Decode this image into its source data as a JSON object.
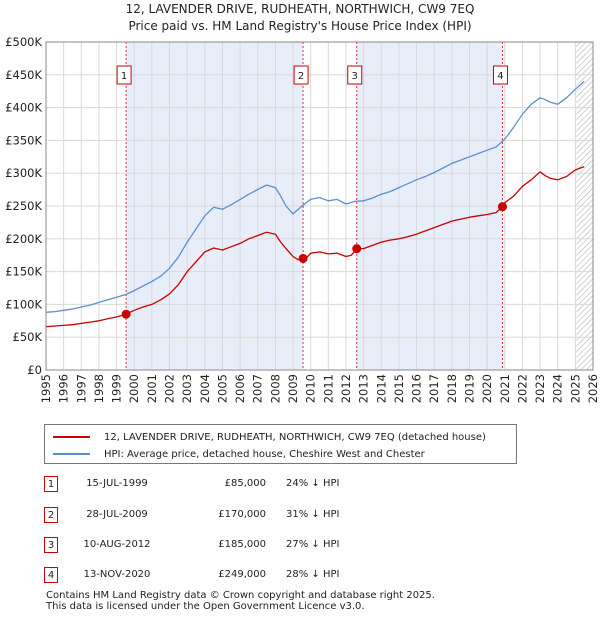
{
  "title_line1": "12, LAVENDER DRIVE, RUDHEATH, NORTHWICH, CW9 7EQ",
  "title_line2": "Price paid vs. HM Land Registry's House Price Index (HPI)",
  "chart_data": {
    "type": "line",
    "x_range": [
      1995,
      2026
    ],
    "ylim": [
      0,
      500000
    ],
    "y_ticks": [
      0,
      50000,
      100000,
      150000,
      200000,
      250000,
      300000,
      350000,
      400000,
      450000,
      500000
    ],
    "y_tick_labels": [
      "£0",
      "£50K",
      "£100K",
      "£150K",
      "£200K",
      "£250K",
      "£300K",
      "£350K",
      "£400K",
      "£450K",
      "£500K"
    ],
    "x_ticks": [
      1995,
      1996,
      1997,
      1998,
      1999,
      2000,
      2001,
      2002,
      2003,
      2004,
      2005,
      2006,
      2007,
      2008,
      2009,
      2010,
      2011,
      2012,
      2013,
      2014,
      2015,
      2016,
      2017,
      2018,
      2019,
      2020,
      2021,
      2022,
      2023,
      2024,
      2025,
      2026
    ],
    "grid": true,
    "forecast_from": 2025.05,
    "colors": {
      "property": "#cc0000",
      "hpi": "#5b8fd0",
      "shade": "#e8eef9",
      "grid": "#d8d8d8"
    },
    "series": [
      {
        "name": "12, LAVENDER DRIVE, RUDHEATH, NORTHWICH, CW9 7EQ (detached house)",
        "color": "#cc0000",
        "x": [
          1995,
          1995.5,
          1996,
          1996.5,
          1997,
          1997.5,
          1998,
          1998.5,
          1999,
          1999.54,
          2000,
          2000.5,
          2001,
          2001.5,
          2002,
          2002.5,
          2003,
          2003.5,
          2004,
          2004.5,
          2005,
          2005.5,
          2006,
          2006.5,
          2007,
          2007.5,
          2008,
          2008.3,
          2008.6,
          2009,
          2009.3,
          2009.57,
          2009.8,
          2010,
          2010.5,
          2011,
          2011.5,
          2012,
          2012.3,
          2012.61,
          2013,
          2013.5,
          2014,
          2014.5,
          2015,
          2015.5,
          2016,
          2016.5,
          2017,
          2017.5,
          2018,
          2018.5,
          2019,
          2019.5,
          2020,
          2020.5,
          2020.87,
          2021,
          2021.5,
          2022,
          2022.5,
          2023,
          2023.3,
          2023.6,
          2024,
          2024.5,
          2025,
          2025.5
        ],
        "values": [
          66000,
          67000,
          68000,
          69000,
          71000,
          73000,
          75000,
          78000,
          81000,
          85000,
          91000,
          96000,
          100000,
          107000,
          116000,
          130000,
          150000,
          165000,
          180000,
          186000,
          183000,
          188000,
          193000,
          200000,
          205000,
          210000,
          207000,
          195000,
          185000,
          173000,
          168000,
          170000,
          172000,
          178000,
          180000,
          177000,
          178000,
          173000,
          175000,
          185000,
          185000,
          190000,
          195000,
          198000,
          200000,
          203000,
          207000,
          212000,
          217000,
          222000,
          227000,
          230000,
          233000,
          235000,
          237000,
          240000,
          249000,
          255000,
          265000,
          280000,
          290000,
          302000,
          296000,
          292000,
          290000,
          295000,
          305000,
          310000
        ]
      },
      {
        "name": "HPI: Average price, detached house, Cheshire West and Chester",
        "color": "#5b8fd0",
        "x": [
          1995,
          1995.5,
          1996,
          1996.5,
          1997,
          1997.5,
          1998,
          1998.5,
          1999,
          1999.5,
          2000,
          2000.5,
          2001,
          2001.5,
          2002,
          2002.5,
          2003,
          2003.5,
          2004,
          2004.5,
          2005,
          2005.5,
          2006,
          2006.5,
          2007,
          2007.5,
          2008,
          2008.3,
          2008.6,
          2009,
          2009.3,
          2009.5,
          2010,
          2010.5,
          2011,
          2011.5,
          2012,
          2012.5,
          2013,
          2013.5,
          2014,
          2014.5,
          2015,
          2015.5,
          2016,
          2016.5,
          2017,
          2017.5,
          2018,
          2018.5,
          2019,
          2019.5,
          2020,
          2020.5,
          2021,
          2021.5,
          2022,
          2022.5,
          2023,
          2023.3,
          2023.6,
          2024,
          2024.5,
          2025,
          2025.5
        ],
        "values": [
          88000,
          89000,
          91000,
          93000,
          96000,
          99000,
          103000,
          107000,
          111000,
          115000,
          121000,
          128000,
          135000,
          143000,
          155000,
          172000,
          195000,
          215000,
          235000,
          248000,
          245000,
          252000,
          260000,
          268000,
          275000,
          282000,
          278000,
          265000,
          250000,
          238000,
          245000,
          250000,
          260000,
          263000,
          258000,
          260000,
          253000,
          257000,
          258000,
          262000,
          268000,
          272000,
          278000,
          284000,
          290000,
          295000,
          301000,
          308000,
          315000,
          320000,
          325000,
          330000,
          335000,
          340000,
          352000,
          370000,
          390000,
          405000,
          415000,
          412000,
          408000,
          405000,
          415000,
          428000,
          440000
        ]
      }
    ],
    "transactions": [
      {
        "id": "1",
        "x": 1999.54,
        "price": 85000,
        "date": "15-JUL-1999",
        "price_label": "£85,000",
        "hpi_label": "24% ↓ HPI"
      },
      {
        "id": "2",
        "x": 2009.57,
        "price": 170000,
        "date": "28-JUL-2009",
        "price_label": "£170,000",
        "hpi_label": "31% ↓ HPI"
      },
      {
        "id": "3",
        "x": 2012.61,
        "price": 185000,
        "date": "10-AUG-2012",
        "price_label": "£185,000",
        "hpi_label": "27% ↓ HPI"
      },
      {
        "id": "4",
        "x": 2020.87,
        "price": 249000,
        "date": "13-NOV-2020",
        "price_label": "£249,000",
        "hpi_label": "28% ↓ HPI"
      }
    ]
  },
  "legend": {
    "property_label": "12, LAVENDER DRIVE, RUDHEATH, NORTHWICH, CW9 7EQ (detached house)",
    "hpi_label": "HPI: Average price, detached house, Cheshire West and Chester"
  },
  "footer": {
    "line1": "Contains HM Land Registry data © Crown copyright and database right 2025.",
    "line2": "This data is licensed under the Open Government Licence v3.0."
  }
}
